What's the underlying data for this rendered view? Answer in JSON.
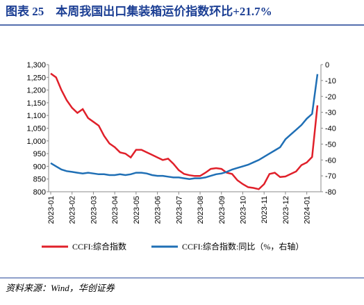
{
  "chart_data": {
    "type": "line",
    "title": "图表 25　本周我国出口集装箱运价指数环比+21.7%",
    "source": "资料来源：Wind，华创证券",
    "categories": [
      "2023-01",
      null,
      null,
      null,
      "2023-02",
      null,
      null,
      null,
      "2023-03",
      null,
      null,
      null,
      "2023-04",
      null,
      null,
      null,
      "2023-05",
      null,
      null,
      null,
      "2023-06",
      null,
      null,
      null,
      "2023-07",
      null,
      null,
      null,
      "2023-08",
      null,
      null,
      null,
      "2023-09",
      null,
      null,
      null,
      "2023-10",
      null,
      null,
      null,
      "2023-11",
      null,
      null,
      null,
      "2023-12",
      null,
      null,
      null,
      "2024-01",
      null,
      null
    ],
    "series": [
      {
        "name": "CCFI:综合指数",
        "color": "#e0202a",
        "values": [
          1265,
          1250,
          1200,
          1160,
          1130,
          1110,
          1125,
          1090,
          1075,
          1060,
          1020,
          990,
          975,
          955,
          950,
          935,
          965,
          965,
          955,
          945,
          935,
          925,
          930,
          910,
          885,
          870,
          865,
          862,
          862,
          875,
          890,
          893,
          890,
          875,
          870,
          845,
          830,
          818,
          815,
          810,
          830,
          870,
          875,
          858,
          860,
          870,
          880,
          905,
          915,
          937,
          1140
        ]
      },
      {
        "name": "CCFI:综合指数:同比（%，右轴）",
        "color": "#1f6fb5",
        "axis": "y2",
        "values": [
          -62,
          -64,
          -66,
          -67,
          -67.5,
          -68,
          -68.5,
          -68,
          -68.5,
          -69,
          -69,
          -69.5,
          -69.5,
          -69,
          -69.5,
          -69,
          -68,
          -68,
          -68.5,
          -69.5,
          -70,
          -70,
          -70.5,
          -71,
          -71,
          -71.5,
          -72,
          -71.5,
          -71.5,
          -71,
          -70,
          -69,
          -68.5,
          -67.5,
          -66,
          -65,
          -64,
          -63,
          -61.5,
          -60,
          -58,
          -56,
          -54,
          -52,
          -47,
          -44,
          -41,
          -38,
          -34,
          -31,
          -6
        ]
      }
    ],
    "ylim": [
      800,
      1300
    ],
    "yticks": [
      800,
      850,
      900,
      950,
      {
        "value": 1000,
        "label": "1,000"
      },
      {
        "value": 1050,
        "label": "1,050"
      },
      {
        "value": 1100,
        "label": "1,100"
      },
      {
        "value": 1150,
        "label": "1,150"
      },
      {
        "value": 1200,
        "label": "1,200"
      },
      {
        "value": 1250,
        "label": "1,250"
      },
      {
        "value": 1300,
        "label": "1,300"
      }
    ],
    "y2lim": [
      -80,
      0
    ],
    "y2ticks": [
      -80,
      -70,
      -60,
      -50,
      -40,
      -30,
      -20,
      -10,
      0
    ]
  }
}
